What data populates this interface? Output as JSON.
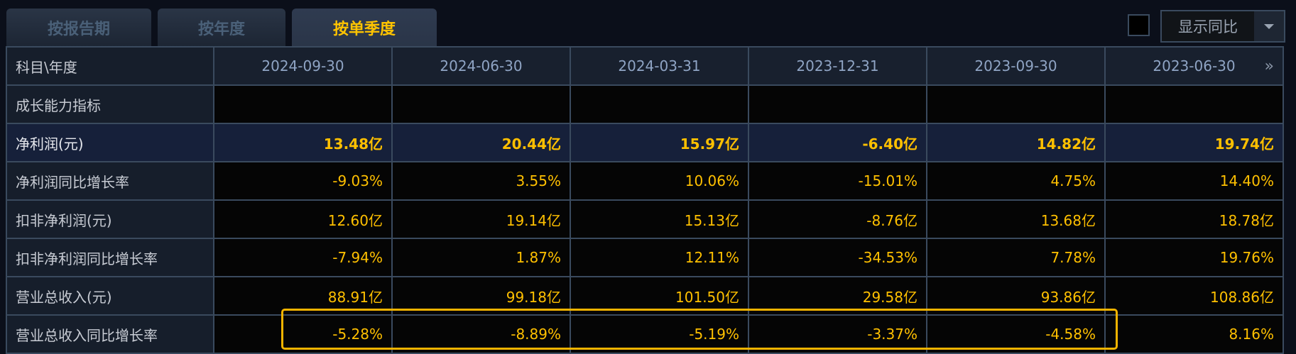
{
  "tabs": [
    {
      "label": "按报告期",
      "active": false
    },
    {
      "label": "按年度",
      "active": false
    },
    {
      "label": "按单季度",
      "active": true
    }
  ],
  "compare": {
    "checkbox_checked": false,
    "dropdown_value": "显示同比"
  },
  "table": {
    "corner": "科目\\年度",
    "columns": [
      "2024-09-30",
      "2024-06-30",
      "2024-03-31",
      "2023-12-31",
      "2023-09-30",
      "2023-06-30"
    ],
    "rows": [
      {
        "label": "成长能力指标",
        "values": [
          "",
          "",
          "",
          "",
          "",
          ""
        ]
      },
      {
        "label": "净利润(元)",
        "values": [
          "13.48亿",
          "20.44亿",
          "15.97亿",
          "-6.40亿",
          "14.82亿",
          "19.74亿"
        ]
      },
      {
        "label": "净利润同比增长率",
        "values": [
          "-9.03%",
          "3.55%",
          "10.06%",
          "-15.01%",
          "4.75%",
          "14.40%"
        ]
      },
      {
        "label": "扣非净利润(元)",
        "values": [
          "12.60亿",
          "19.14亿",
          "15.13亿",
          "-8.76亿",
          "13.68亿",
          "18.78亿"
        ]
      },
      {
        "label": "扣非净利润同比增长率",
        "values": [
          "-7.94%",
          "1.87%",
          "12.11%",
          "-34.53%",
          "7.78%",
          "19.76%"
        ]
      },
      {
        "label": "营业总收入(元)",
        "values": [
          "88.91亿",
          "99.18亿",
          "101.50亿",
          "29.58亿",
          "93.86亿",
          "108.86亿"
        ]
      },
      {
        "label": "营业总收入同比增长率",
        "values": [
          "-5.28%",
          "-8.89%",
          "-5.19%",
          "-3.37%",
          "-4.58%",
          "8.16%"
        ]
      }
    ]
  },
  "colors": {
    "accent": "#ffc000",
    "highlight_box": "#f5b400",
    "background": "#0b0f1a"
  }
}
